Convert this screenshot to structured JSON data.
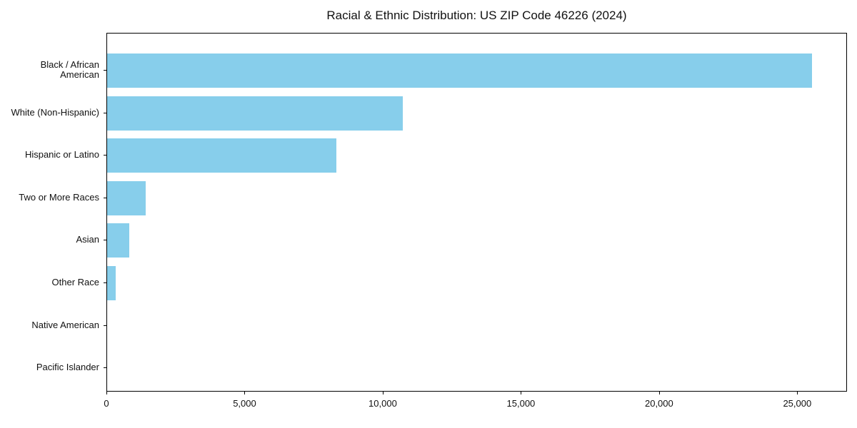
{
  "chart_data": {
    "type": "bar",
    "orientation": "horizontal",
    "title": "Racial & Ethnic Distribution: US ZIP Code 46226 (2024)",
    "categories": [
      "Black / African American",
      "White (Non-Hispanic)",
      "Hispanic or Latino",
      "Two or More Races",
      "Asian",
      "Other Race",
      "Native American",
      "Pacific Islander"
    ],
    "values": [
      25500,
      10700,
      8300,
      1400,
      800,
      300,
      0,
      0
    ],
    "xlabel": "",
    "ylabel": "",
    "xlim": [
      0,
      26800
    ],
    "x_tick_labels": [
      "0",
      "5,000",
      "10,000",
      "15,000",
      "20,000",
      "25,000"
    ],
    "x_tick_values": [
      0,
      5000,
      10000,
      15000,
      20000,
      25000
    ],
    "bar_color": "#87CEEB",
    "background_color": "#ffffff",
    "grid": false,
    "legend": null
  }
}
